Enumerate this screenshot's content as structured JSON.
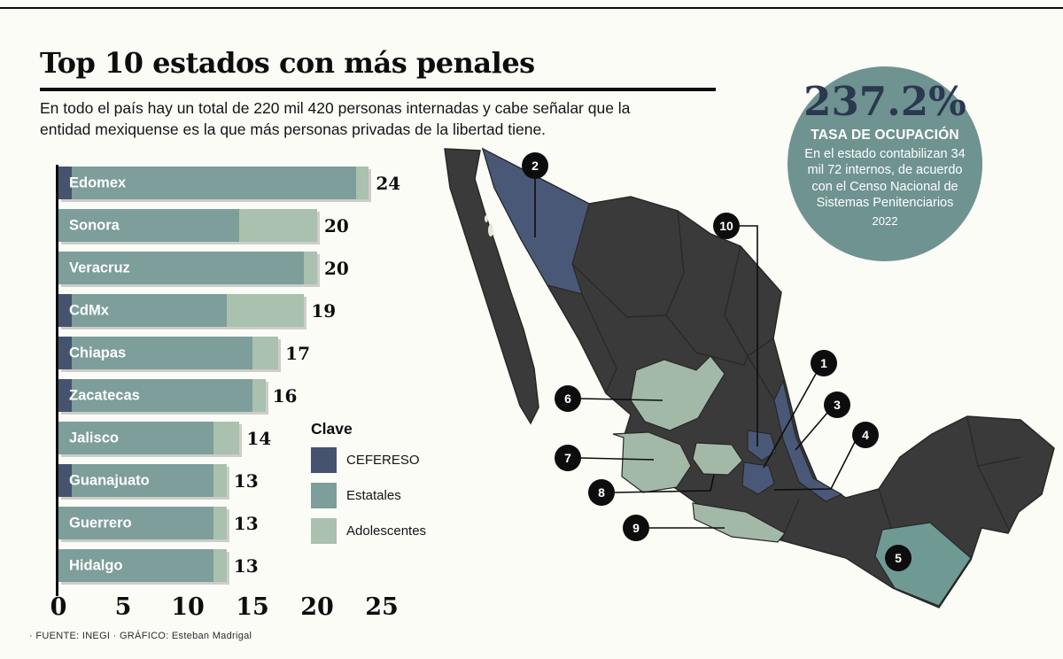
{
  "colors": {
    "background": "#fcfcf7",
    "ink": "#0d0d0d",
    "cefereso": "#46536e",
    "estatales": "#7d9e9a",
    "adolescentes": "#a9c1ae",
    "map_base": "#3a3a3a",
    "map_border": "#282828",
    "map_navy": "#4a5878",
    "map_teal": "#6f9a94",
    "map_sage": "#a2b9a7",
    "badge_fill": "#6f9390",
    "badge_number": "#2b3850",
    "badge_text": "#ffffff",
    "marker_fill": "#0d0d0d"
  },
  "header": {
    "title": "Top 10 estados con más penales",
    "subtitle": "En todo el país hay un total de 220 mil 420 personas internadas y cabe señalar que la entidad mexiquense es la que más personas privadas de la libertad tiene."
  },
  "badge": {
    "value": "237.2%",
    "label": "TASA DE OCUPACIÓN",
    "body": "En el estado contabilizan 34 mil 72 internos, de acuerdo con el Censo Nacional de Sistemas Penitenciarios",
    "year": "2022"
  },
  "legend": {
    "title": "Clave",
    "items": [
      {
        "label": "CEFERESO",
        "color_key": "cefereso"
      },
      {
        "label": "Estatales",
        "color_key": "estatales"
      },
      {
        "label": "Adolescentes",
        "color_key": "adolescentes"
      }
    ]
  },
  "chart_data": {
    "type": "bar",
    "orientation": "horizontal",
    "title": "Top 10 estados con más penales",
    "categories": [
      "Edomex",
      "Sonora",
      "Veracruz",
      "CdMx",
      "Chiapas",
      "Zacatecas",
      "Jalisco",
      "Guanajuato",
      "Guerrero",
      "Hidalgo"
    ],
    "totals": [
      24,
      20,
      20,
      19,
      17,
      16,
      14,
      13,
      13,
      13
    ],
    "series": [
      {
        "name": "CEFERESO",
        "values": [
          1,
          0,
          0,
          1,
          1,
          1,
          0,
          1,
          0,
          0
        ]
      },
      {
        "name": "Estatales",
        "values": [
          22,
          14,
          19,
          12,
          14,
          14,
          12,
          11,
          12,
          12
        ]
      },
      {
        "name": "Adolescentes",
        "values": [
          1,
          6,
          1,
          6,
          2,
          1,
          2,
          1,
          1,
          1
        ]
      }
    ],
    "xticks": [
      0,
      5,
      10,
      15,
      20,
      25
    ],
    "xlim": [
      0,
      25
    ],
    "legend_position": "right-middle",
    "grid": false
  },
  "map": {
    "markers": [
      {
        "n": "1",
        "state": "Edomex"
      },
      {
        "n": "2",
        "state": "Sonora"
      },
      {
        "n": "3",
        "state": "Veracruz"
      },
      {
        "n": "4",
        "state": "CdMx"
      },
      {
        "n": "5",
        "state": "Chiapas"
      },
      {
        "n": "6",
        "state": "Zacatecas"
      },
      {
        "n": "7",
        "state": "Jalisco"
      },
      {
        "n": "8",
        "state": "Guanajuato"
      },
      {
        "n": "9",
        "state": "Guerrero"
      },
      {
        "n": "10",
        "state": "Hidalgo"
      }
    ]
  },
  "footer": {
    "credits": "· FUENTE: INEGI · GRÁFICO: Esteban Madrigal"
  }
}
